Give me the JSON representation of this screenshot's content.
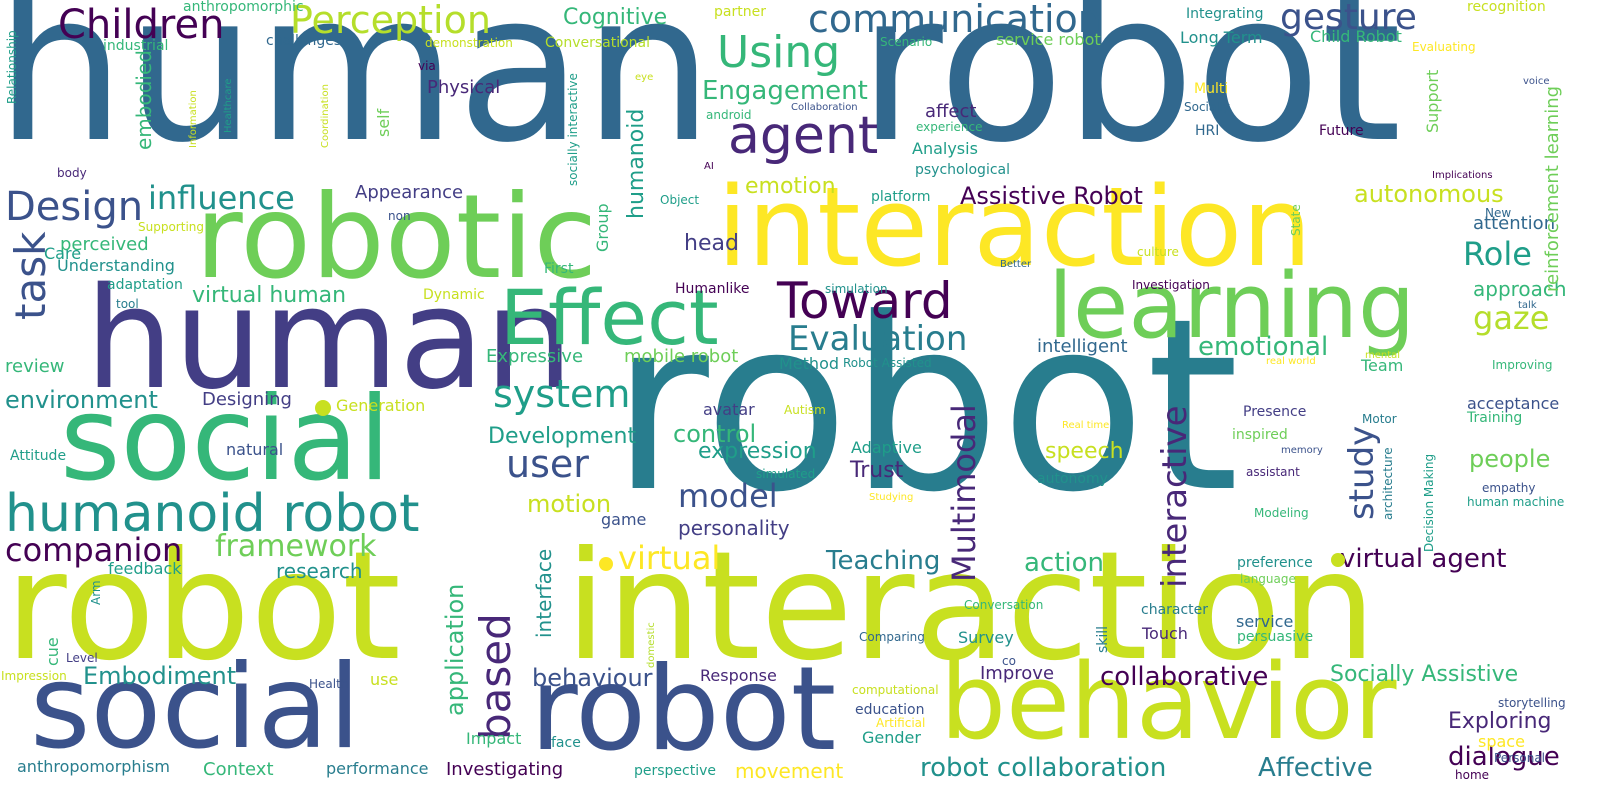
{
  "colors": {
    "deep_purple": "#440154",
    "indigo": "#482878",
    "purple_blue": "#433e85",
    "slate_blue": "#3b528b",
    "blue": "#31688e",
    "teal": "#287d8e",
    "teal2": "#21918c",
    "aqua": "#1f9e89",
    "sea": "#35b779",
    "green": "#6ece58",
    "lime": "#90d743",
    "yellow_green": "#b5de2b",
    "lemon": "#c8e020",
    "yellow": "#fde725"
  },
  "words": [
    {
      "text": "human"
    },
    {
      "text": "robot"
    },
    {
      "text": "robotic"
    },
    {
      "text": "interaction"
    },
    {
      "text": "human"
    },
    {
      "text": "robot"
    },
    {
      "text": "social"
    },
    {
      "text": "learning"
    },
    {
      "text": "Effect"
    },
    {
      "text": "robot"
    },
    {
      "text": "interaction"
    },
    {
      "text": "social"
    },
    {
      "text": "robot"
    },
    {
      "text": "behavior"
    },
    {
      "text": "humanoid robot"
    },
    {
      "text": "based"
    },
    {
      "text": "Children"
    },
    {
      "text": "Perception"
    },
    {
      "text": "communication"
    },
    {
      "text": "gesture"
    },
    {
      "text": "Using"
    },
    {
      "text": "agent"
    },
    {
      "text": "Toward"
    },
    {
      "text": "Design"
    },
    {
      "text": "influence"
    },
    {
      "text": "task"
    },
    {
      "text": "system"
    },
    {
      "text": "user"
    },
    {
      "text": "Evaluation"
    },
    {
      "text": "Multimodal"
    },
    {
      "text": "interactive"
    },
    {
      "text": "study"
    },
    {
      "text": "framework"
    },
    {
      "text": "companion"
    },
    {
      "text": "virtual"
    },
    {
      "text": "model"
    },
    {
      "text": "Role"
    },
    {
      "text": "gaze"
    },
    {
      "text": "Engagement"
    },
    {
      "text": "Cognitive"
    },
    {
      "text": "emotional"
    },
    {
      "text": "autonomous"
    },
    {
      "text": "Assistive Robot"
    },
    {
      "text": "virtual agent"
    },
    {
      "text": "Teaching"
    },
    {
      "text": "action"
    },
    {
      "text": "collaborative"
    },
    {
      "text": "Embodiment"
    },
    {
      "text": "behaviour"
    },
    {
      "text": "robot collaboration"
    },
    {
      "text": "Affective"
    },
    {
      "text": "dialogue"
    },
    {
      "text": "Exploring"
    },
    {
      "text": "Socially Assistive"
    },
    {
      "text": "environment"
    },
    {
      "text": "virtual human"
    },
    {
      "text": "motion"
    },
    {
      "text": "Development"
    },
    {
      "text": "control"
    },
    {
      "text": "expression"
    },
    {
      "text": "speech"
    },
    {
      "text": "Trust"
    },
    {
      "text": "personality"
    },
    {
      "text": "application"
    },
    {
      "text": "interface"
    },
    {
      "text": "emotion"
    },
    {
      "text": "head"
    },
    {
      "text": "humanoid"
    },
    {
      "text": "embodied"
    },
    {
      "text": "approach"
    },
    {
      "text": "people"
    },
    {
      "text": "attention"
    },
    {
      "text": "reinforcement learning"
    },
    {
      "text": "research"
    },
    {
      "text": "movement"
    },
    {
      "text": "Investigating"
    },
    {
      "text": "anthropomorphism"
    },
    {
      "text": "Context"
    },
    {
      "text": "performance"
    },
    {
      "text": "Response"
    },
    {
      "text": "Improve"
    },
    {
      "text": "Expressive"
    },
    {
      "text": "mobile robot"
    },
    {
      "text": "affect"
    },
    {
      "text": "Analysis"
    },
    {
      "text": "Physical"
    },
    {
      "text": "Appearance"
    },
    {
      "text": "perceived"
    },
    {
      "text": "Understanding"
    },
    {
      "text": "review"
    },
    {
      "text": "Designing"
    },
    {
      "text": "intelligent"
    },
    {
      "text": "feedback"
    },
    {
      "text": "Care"
    },
    {
      "text": "Group"
    },
    {
      "text": "service robot"
    },
    {
      "text": "Long Term"
    },
    {
      "text": "Child Robot"
    },
    {
      "text": "acceptance"
    },
    {
      "text": "Training"
    },
    {
      "text": "inspired"
    },
    {
      "text": "Presence"
    },
    {
      "text": "Adaptive"
    },
    {
      "text": "Gender"
    },
    {
      "text": "education"
    },
    {
      "text": "service"
    },
    {
      "text": "persuasive"
    },
    {
      "text": "Survey"
    },
    {
      "text": "Touch"
    },
    {
      "text": "character"
    },
    {
      "text": "game"
    },
    {
      "text": "avatar"
    },
    {
      "text": "Method"
    },
    {
      "text": "Team"
    },
    {
      "text": "natural"
    },
    {
      "text": "Attitude"
    },
    {
      "text": "Generation"
    },
    {
      "text": "Dynamic"
    },
    {
      "text": "autonomy"
    },
    {
      "text": "empathy"
    },
    {
      "text": "human machine"
    },
    {
      "text": "Comparing"
    },
    {
      "text": "Conversation"
    },
    {
      "text": "skill"
    },
    {
      "text": "use"
    },
    {
      "text": "Health"
    },
    {
      "text": "cue"
    },
    {
      "text": "Level"
    },
    {
      "text": "Impression"
    },
    {
      "text": "Arm"
    },
    {
      "text": "Impact"
    },
    {
      "text": "face"
    },
    {
      "text": "perspective"
    },
    {
      "text": "Supporting"
    },
    {
      "text": "industrial"
    },
    {
      "text": "challenges"
    },
    {
      "text": "demonstration"
    },
    {
      "text": "Conversational"
    },
    {
      "text": "partner"
    },
    {
      "text": "anthropomorphic"
    },
    {
      "text": "Integrating"
    },
    {
      "text": "recognition"
    },
    {
      "text": "Evaluating"
    },
    {
      "text": "Relationship"
    },
    {
      "text": "via"
    },
    {
      "text": "eye"
    },
    {
      "text": "Scenario"
    },
    {
      "text": "Collaboration"
    },
    {
      "text": "Multi"
    },
    {
      "text": "Socially"
    },
    {
      "text": "HRI"
    },
    {
      "text": "Future"
    },
    {
      "text": "Support"
    },
    {
      "text": "voice"
    },
    {
      "text": "android"
    },
    {
      "text": "experience"
    },
    {
      "text": "psychological"
    },
    {
      "text": "self"
    },
    {
      "text": "Information"
    },
    {
      "text": "Healthcare"
    },
    {
      "text": "Coordination"
    },
    {
      "text": "socially interactive"
    },
    {
      "text": "AI"
    },
    {
      "text": "body"
    },
    {
      "text": "Implications"
    },
    {
      "text": "Object"
    },
    {
      "text": "platform"
    },
    {
      "text": "non"
    },
    {
      "text": "New"
    },
    {
      "text": "State"
    },
    {
      "text": "culture"
    },
    {
      "text": "Better"
    },
    {
      "text": "First"
    },
    {
      "text": "adaptation"
    },
    {
      "text": "tool"
    },
    {
      "text": "Humanlike"
    },
    {
      "text": "simulation"
    },
    {
      "text": "Investigation"
    },
    {
      "text": "talk"
    },
    {
      "text": "real world"
    },
    {
      "text": "mental"
    },
    {
      "text": "Improving"
    },
    {
      "text": "Robot Assisted"
    },
    {
      "text": "Autism"
    },
    {
      "text": "Real time"
    },
    {
      "text": "Motor"
    },
    {
      "text": "memory"
    },
    {
      "text": "assistant"
    },
    {
      "text": "architecture"
    },
    {
      "text": "Decision Making"
    },
    {
      "text": "simulated"
    },
    {
      "text": "Studying"
    },
    {
      "text": "Modeling"
    },
    {
      "text": "preference"
    },
    {
      "text": "language"
    },
    {
      "text": "computational"
    },
    {
      "text": "Artificial"
    },
    {
      "text": "domestic"
    },
    {
      "text": "co"
    },
    {
      "text": "space"
    },
    {
      "text": "Personal"
    },
    {
      "text": "home"
    },
    {
      "text": "storytelling"
    }
  ]
}
